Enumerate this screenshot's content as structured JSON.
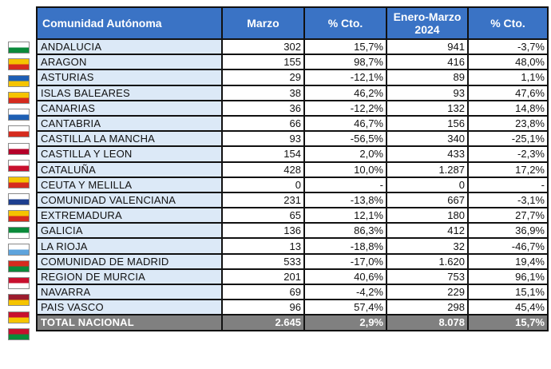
{
  "headers": {
    "community": "Comunidad Autónoma",
    "march": "Marzo",
    "pct1": "% Cto.",
    "ytd": "Enero-Marzo 2024",
    "pct2": "% Cto."
  },
  "rows": [
    {
      "name": "ANDALUCIA",
      "march": "302",
      "pct1": "15,7%",
      "ytd": "941",
      "pct2": "-3,7%",
      "flag": [
        "#ffffff",
        "#0a8a3a"
      ]
    },
    {
      "name": "ARAGON",
      "march": "155",
      "pct1": "98,7%",
      "ytd": "416",
      "pct2": "48,0%",
      "flag": [
        "#f5c400",
        "#d52b1e"
      ]
    },
    {
      "name": "ASTURIAS",
      "march": "29",
      "pct1": "-12,1%",
      "ytd": "89",
      "pct2": "1,1%",
      "flag": [
        "#1e5fb4",
        "#f5c400"
      ]
    },
    {
      "name": "ISLAS BALEARES",
      "march": "38",
      "pct1": "46,2%",
      "ytd": "93",
      "pct2": "47,6%",
      "flag": [
        "#f5c400",
        "#d52b1e"
      ]
    },
    {
      "name": "CANARIAS",
      "march": "36",
      "pct1": "-12,2%",
      "ytd": "132",
      "pct2": "14,8%",
      "flag": [
        "#ffffff",
        "#1e5fb4"
      ]
    },
    {
      "name": "CANTABRIA",
      "march": "66",
      "pct1": "46,7%",
      "ytd": "156",
      "pct2": "23,8%",
      "flag": [
        "#ffffff",
        "#d52b1e"
      ]
    },
    {
      "name": "CASTILLA  LA MANCHA",
      "march": "93",
      "pct1": "-56,5%",
      "ytd": "340",
      "pct2": "-25,1%",
      "flag": [
        "#ffffff",
        "#b5002a"
      ]
    },
    {
      "name": "CASTILLA Y LEON",
      "march": "154",
      "pct1": "2,0%",
      "ytd": "433",
      "pct2": "-2,3%",
      "flag": [
        "#ffffff",
        "#c8102e"
      ]
    },
    {
      "name": "CATALUÑA",
      "march": "428",
      "pct1": "10,0%",
      "ytd": "1.287",
      "pct2": "17,2%",
      "flag": [
        "#f5c400",
        "#d52b1e"
      ]
    },
    {
      "name": "CEUTA Y MELILLA",
      "march": "0",
      "pct1": "-",
      "ytd": "0",
      "pct2": "-",
      "flag": [
        "#ffffff",
        "#1e3f8f"
      ]
    },
    {
      "name": "COMUNIDAD VALENCIANA",
      "march": "231",
      "pct1": "-13,8%",
      "ytd": "667",
      "pct2": "-3,1%",
      "flag": [
        "#f5c400",
        "#d52b1e"
      ]
    },
    {
      "name": "EXTREMADURA",
      "march": "65",
      "pct1": "12,1%",
      "ytd": "180",
      "pct2": "27,7%",
      "flag": [
        "#0a8a3a",
        "#ffffff"
      ]
    },
    {
      "name": "GALICIA",
      "march": "136",
      "pct1": "86,3%",
      "ytd": "412",
      "pct2": "36,9%",
      "flag": [
        "#ffffff",
        "#5ea3dc"
      ]
    },
    {
      "name": "LA RIOJA",
      "march": "13",
      "pct1": "-18,8%",
      "ytd": "32",
      "pct2": "-46,7%",
      "flag": [
        "#d52b1e",
        "#0a8a3a"
      ]
    },
    {
      "name": "COMUNIDAD DE MADRID",
      "march": "533",
      "pct1": "-17,0%",
      "ytd": "1.620",
      "pct2": "19,4%",
      "flag": [
        "#c8102e",
        "#ffffff"
      ]
    },
    {
      "name": "REGION DE MURCIA",
      "march": "201",
      "pct1": "40,6%",
      "ytd": "753",
      "pct2": "96,1%",
      "flag": [
        "#9b1c2e",
        "#f5c400"
      ]
    },
    {
      "name": "NAVARRA",
      "march": "69",
      "pct1": "-4,2%",
      "ytd": "229",
      "pct2": "15,1%",
      "flag": [
        "#c8102e",
        "#f5c400"
      ]
    },
    {
      "name": "PAIS VASCO",
      "march": "96",
      "pct1": "57,4%",
      "ytd": "298",
      "pct2": "45,4%",
      "flag": [
        "#c8102e",
        "#0a8a3a"
      ]
    }
  ],
  "total": {
    "name": "TOTAL NACIONAL",
    "march": "2.645",
    "pct1": "2,9%",
    "ytd": "8.078",
    "pct2": "15,7%"
  }
}
